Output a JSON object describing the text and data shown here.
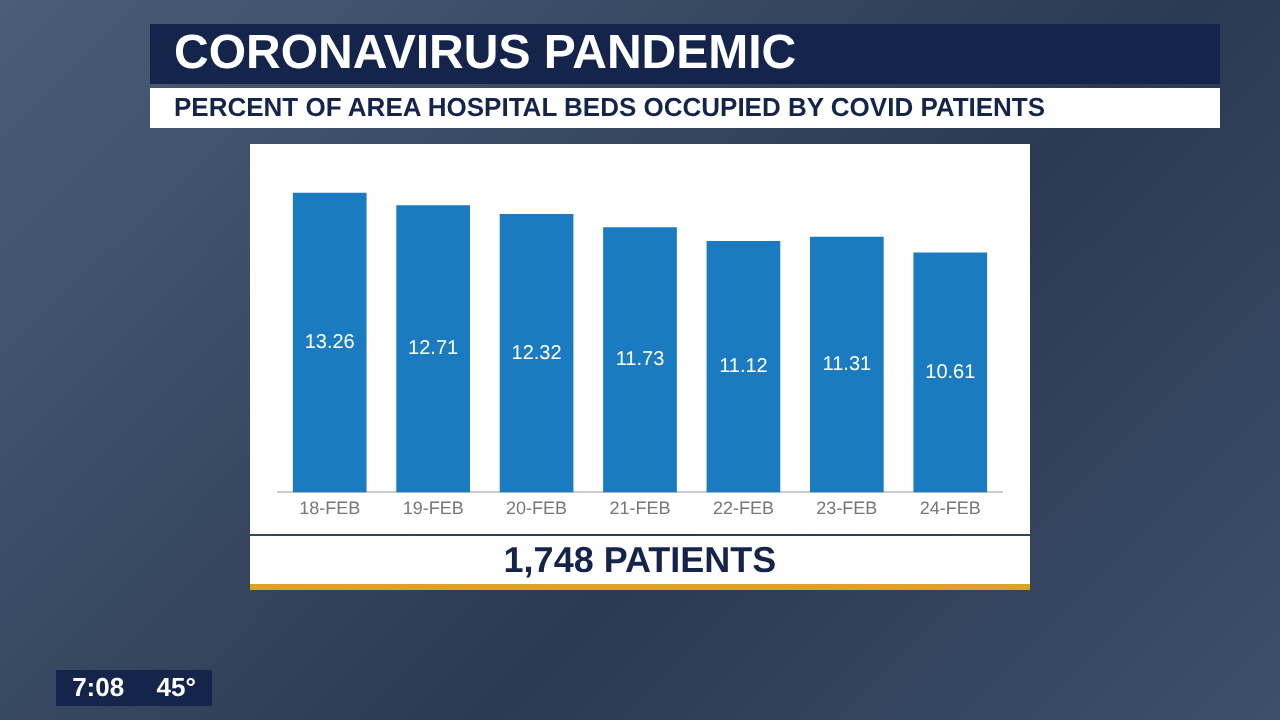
{
  "chart_data": {
    "type": "bar",
    "title": "CORONAVIRUS PANDEMIC",
    "subtitle": "PERCENT OF AREA HOSPITAL BEDS OCCUPIED BY COVID PATIENTS",
    "categories": [
      "18-FEB",
      "19-FEB",
      "20-FEB",
      "21-FEB",
      "22-FEB",
      "23-FEB",
      "24-FEB"
    ],
    "values": [
      13.26,
      12.71,
      12.32,
      11.73,
      11.12,
      11.31,
      10.61
    ],
    "color": "#1a7bc0",
    "data_labels": true,
    "grid": false,
    "legend": false,
    "tick_labels": "x",
    "annotations": [
      "1,748 PATIENTS",
      "7:08",
      "45°"
    ]
  }
}
